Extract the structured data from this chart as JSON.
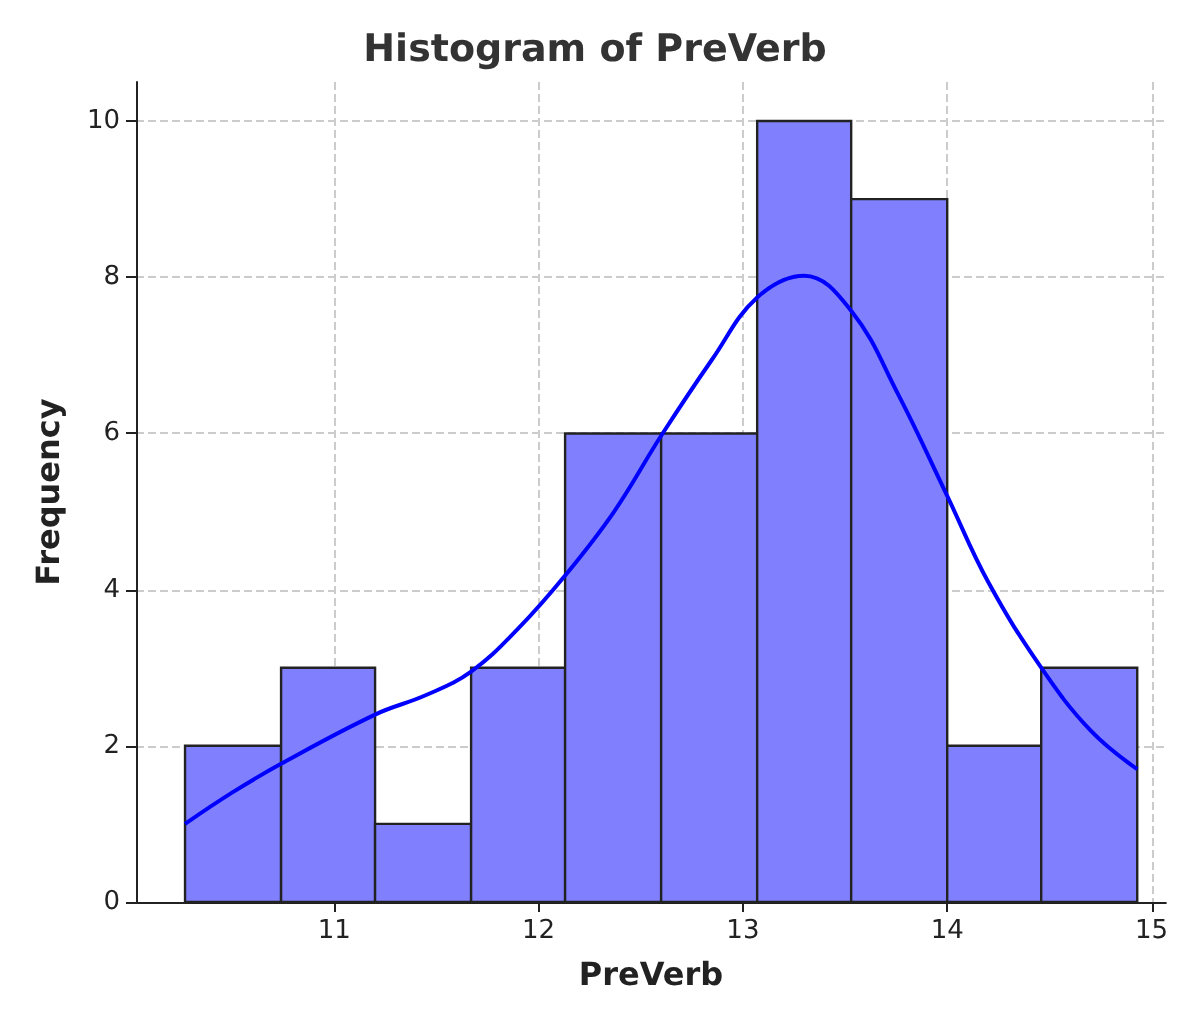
{
  "chart_data": {
    "type": "histogram",
    "title": "Histogram of PreVerb",
    "xlabel": "PreVerb",
    "ylabel": "Frequency",
    "bins": [
      10.27,
      10.74,
      11.2,
      11.67,
      12.13,
      12.6,
      13.07,
      13.53,
      14.0,
      14.46,
      14.93
    ],
    "values": [
      2,
      3,
      1,
      3,
      6,
      6,
      10,
      9,
      2,
      3
    ],
    "color": "#8080ff",
    "series": [
      {
        "type": "line",
        "color": "#0000ff",
        "x": [
          10.27,
          10.5,
          10.74,
          11.2,
          11.45,
          11.67,
          11.9,
          12.13,
          12.37,
          12.6,
          12.85,
          13.07,
          13.3,
          13.53,
          13.76,
          14.0,
          14.2,
          14.46,
          14.7,
          14.93
        ],
        "values": [
          1.0,
          1.4,
          1.77,
          2.4,
          2.65,
          2.95,
          3.5,
          4.18,
          5.0,
          5.97,
          6.95,
          7.74,
          8.02,
          7.57,
          6.5,
          5.2,
          4.1,
          3.0,
          2.2,
          1.7
        ]
      }
    ],
    "xlim": [
      10.03,
      15.07
    ],
    "xticks": [
      11,
      12,
      13,
      14,
      15
    ],
    "ylim": [
      0,
      10.5
    ],
    "yticks": [
      0,
      2,
      4,
      6,
      8,
      10
    ],
    "grid": true,
    "line_style": "solid",
    "marker": "none"
  }
}
